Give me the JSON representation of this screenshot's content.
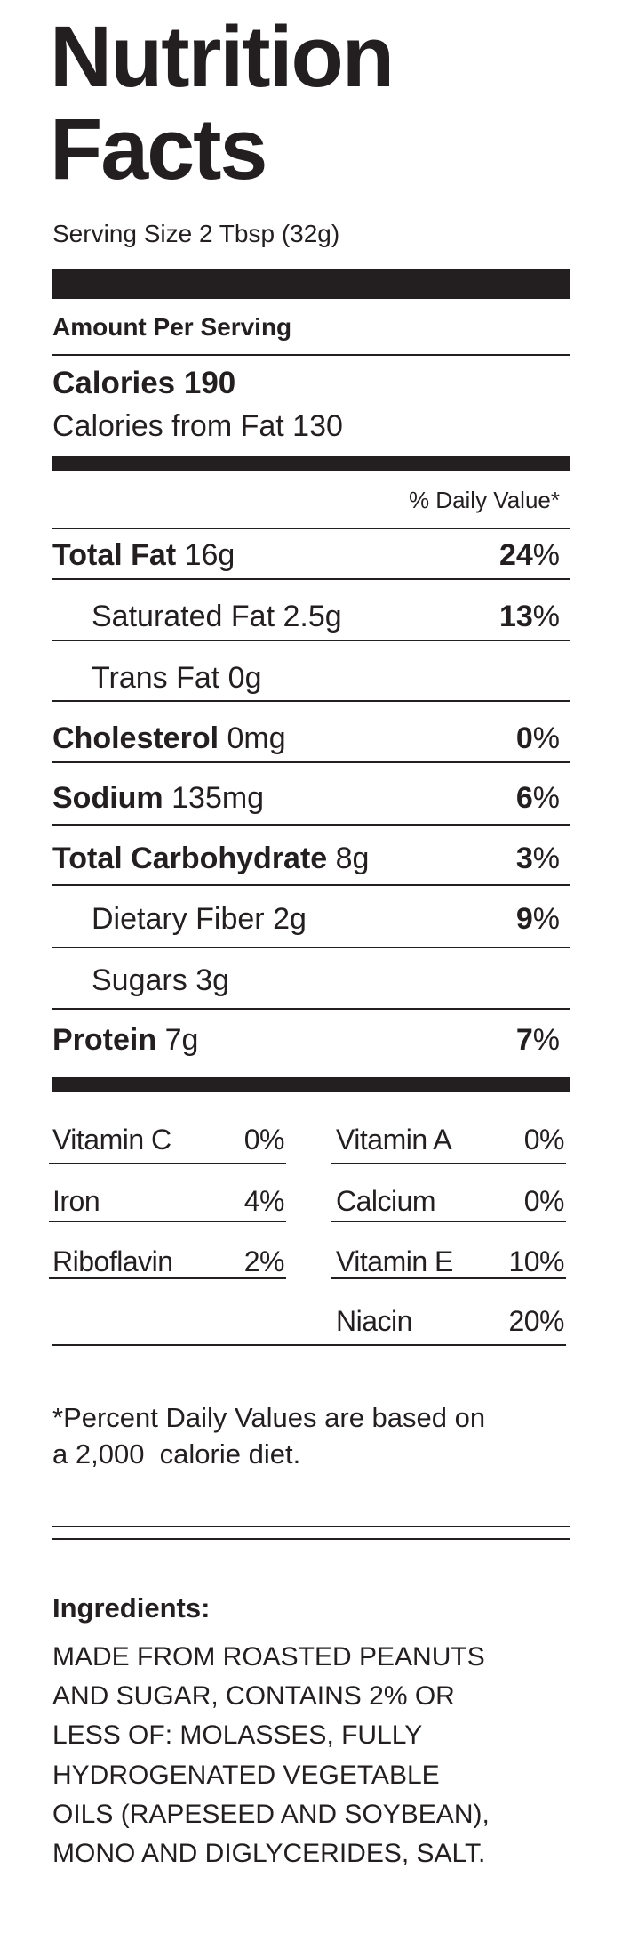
{
  "title": "Nutrition Facts",
  "serving_size": "Serving Size 2 Tbsp (32g)",
  "amount_per_serving": "Amount Per Serving",
  "calories": {
    "label": "Calories",
    "value": "190"
  },
  "calories_from_fat": "Calories from Fat 130",
  "daily_value_header": "% Daily Value*",
  "nutrients": [
    {
      "name": "Total Fat",
      "amount": "16g",
      "dv": "24%",
      "sub": [
        {
          "name": "Saturated Fat",
          "amount": "2.5g",
          "dv": "13%"
        },
        {
          "name": "Trans Fat",
          "amount": "0g"
        }
      ]
    },
    {
      "name": "Cholesterol",
      "amount": "0mg",
      "dv": "0%"
    },
    {
      "name": "Sodium",
      "amount": "135mg",
      "dv": "6%"
    },
    {
      "name": "Total Carbohydrate",
      "amount": "8g",
      "dv": "3%",
      "sub": [
        {
          "name": "Dietary Fiber",
          "amount": "2g",
          "dv": "9%"
        },
        {
          "name": "Sugars",
          "amount": "3g"
        }
      ]
    },
    {
      "name": "Protein",
      "amount": "7g",
      "dv": "7%"
    }
  ],
  "vitamins": {
    "left": [
      {
        "name": "Vitamin C",
        "value": "0%"
      },
      {
        "name": "Iron",
        "value": "4%"
      },
      {
        "name": "Riboflavin",
        "value": "2%"
      }
    ],
    "right": [
      {
        "name": "Vitamin A",
        "value": "0%"
      },
      {
        "name": "Calcium",
        "value": "0%"
      },
      {
        "name": "Vitamin E",
        "value": "10%"
      },
      {
        "name": "Niacin",
        "value": "20%"
      }
    ]
  },
  "footnote": [
    "*Percent Daily Values are based on",
    "a 2,000  calorie diet."
  ],
  "ingredients": {
    "heading": "Ingredients:",
    "lines": [
      "MADE FROM ROASTED PEANUTS",
      "AND SUGAR, CONTAINS 2% OR",
      "LESS OF: MOLASSES, FULLY",
      "HYDROGENATED VEGETABLE",
      "OILS (RAPESEED AND SOYBEAN),",
      "MONO AND DIGLYCERIDES, SALT."
    ]
  }
}
